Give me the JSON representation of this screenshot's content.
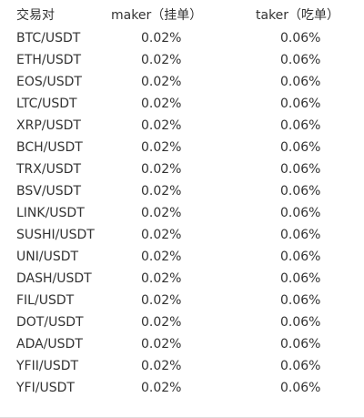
{
  "table": {
    "headers": {
      "pair": "交易对",
      "maker": "maker（挂单）",
      "taker": "taker（吃单）"
    },
    "rows": [
      {
        "pair": "BTC/USDT",
        "maker": "0.02%",
        "taker": "0.06%"
      },
      {
        "pair": "ETH/USDT",
        "maker": "0.02%",
        "taker": "0.06%"
      },
      {
        "pair": "EOS/USDT",
        "maker": "0.02%",
        "taker": "0.06%"
      },
      {
        "pair": "LTC/USDT",
        "maker": "0.02%",
        "taker": "0.06%"
      },
      {
        "pair": "XRP/USDT",
        "maker": "0.02%",
        "taker": "0.06%"
      },
      {
        "pair": "BCH/USDT",
        "maker": "0.02%",
        "taker": "0.06%"
      },
      {
        "pair": "TRX/USDT",
        "maker": "0.02%",
        "taker": "0.06%"
      },
      {
        "pair": "BSV/USDT",
        "maker": "0.02%",
        "taker": "0.06%"
      },
      {
        "pair": "LINK/USDT",
        "maker": "0.02%",
        "taker": "0.06%"
      },
      {
        "pair": "SUSHI/USDT",
        "maker": "0.02%",
        "taker": "0.06%"
      },
      {
        "pair": "UNI/USDT",
        "maker": "0.02%",
        "taker": "0.06%"
      },
      {
        "pair": "DASH/USDT",
        "maker": "0.02%",
        "taker": "0.06%"
      },
      {
        "pair": "FIL/USDT",
        "maker": "0.02%",
        "taker": "0.06%"
      },
      {
        "pair": "DOT/USDT",
        "maker": "0.02%",
        "taker": "0.06%"
      },
      {
        "pair": "ADA/USDT",
        "maker": "0.02%",
        "taker": "0.06%"
      },
      {
        "pair": "YFII/USDT",
        "maker": "0.02%",
        "taker": "0.06%"
      },
      {
        "pair": "YFI/USDT",
        "maker": "0.02%",
        "taker": "0.06%"
      }
    ]
  }
}
